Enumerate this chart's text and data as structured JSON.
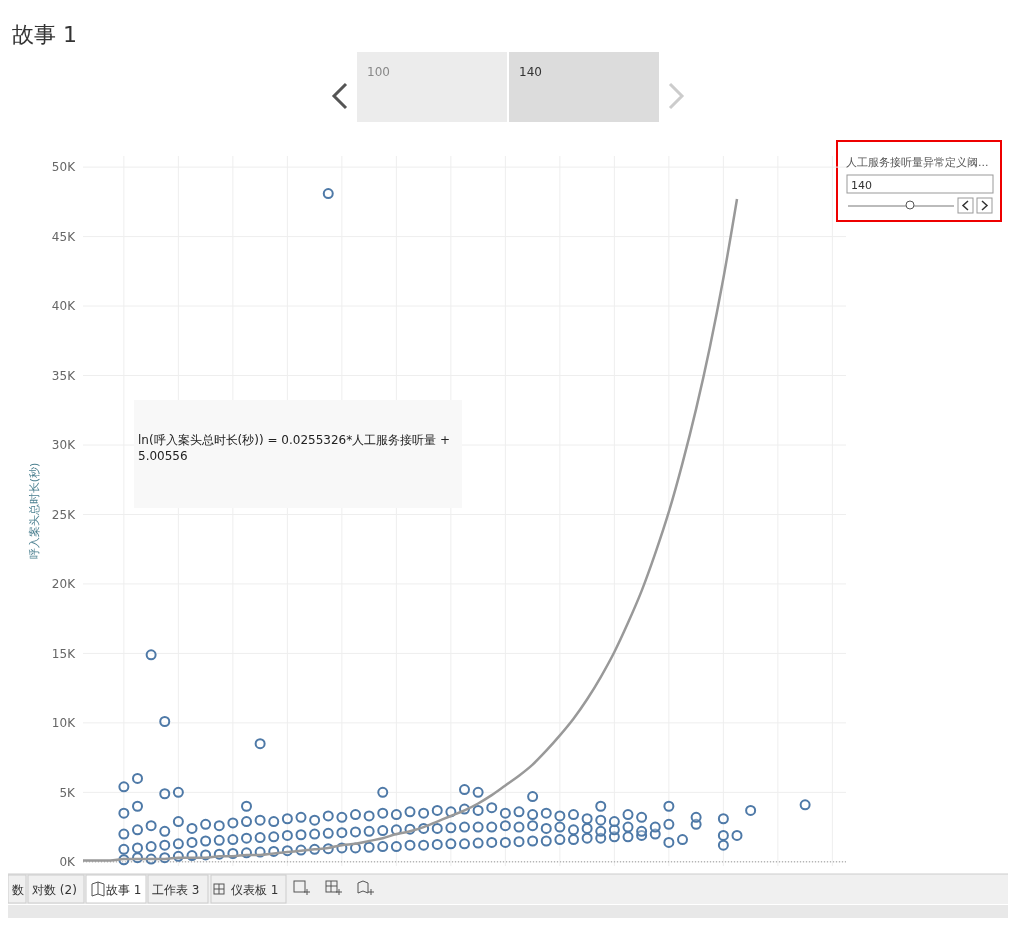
{
  "chart_data": {
    "type": "scatter",
    "title": "故事 1",
    "ylabel": "呼入案头总时长(秒)",
    "categories": [
      null,
      null,
      null,
      null,
      null,
      null,
      null,
      null,
      null,
      null,
      null,
      null,
      null,
      null,
      null,
      null,
      null,
      null,
      null,
      null,
      null,
      null,
      null,
      null,
      null,
      null,
      null,
      null,
      null,
      null,
      null,
      null,
      null,
      null,
      null,
      null,
      null,
      null,
      null,
      null,
      null,
      null,
      null,
      null,
      null,
      null,
      null,
      null,
      null,
      null,
      null,
      null,
      null,
      null,
      null,
      null,
      null
    ],
    "ylim": [
      -300,
      50800
    ],
    "yticks": [
      {
        "value": 0,
        "label": "0K"
      },
      {
        "value": 5000,
        "label": "5K"
      },
      {
        "value": 10000,
        "label": "10K"
      },
      {
        "value": 15000,
        "label": "15K"
      },
      {
        "value": 20000,
        "label": "20K"
      },
      {
        "value": 25000,
        "label": "25K"
      },
      {
        "value": 30000,
        "label": "30K"
      },
      {
        "value": 35000,
        "label": "35K"
      },
      {
        "value": 40000,
        "label": "40K"
      },
      {
        "value": 45000,
        "label": "45K"
      },
      {
        "value": 50000,
        "label": "50K"
      }
    ],
    "tick_labels": "y",
    "grid": true,
    "marker": "circle",
    "series": [
      {
        "color": "#4e79a7",
        "values": [
          null,
          null,
          null,
          150,
          300,
          200,
          300,
          400,
          450,
          500,
          550,
          600,
          650,
          700,
          750,
          800,
          850,
          900,
          950,
          1000,
          1000,
          1050,
          1100,
          1100,
          1200,
          1200,
          1250,
          1300,
          1300,
          1350,
          1400,
          1400,
          1450,
          1500,
          1500,
          1600,
          1600,
          1700,
          1700,
          1800,
          1800,
          1900,
          null,
          1400,
          1600,
          null,
          null,
          1200,
          1900,
          null,
          null,
          null,
          null,
          null,
          null,
          null,
          null
        ]
      },
      {
        "color": "#4e79a7",
        "values": [
          null,
          null,
          null,
          900,
          1000,
          1100,
          1200,
          1300,
          1400,
          1500,
          1550,
          1600,
          1700,
          1750,
          1800,
          1900,
          1950,
          2000,
          2050,
          2100,
          2150,
          2200,
          2250,
          2300,
          2350,
          2400,
          2400,
          2450,
          2500,
          2500,
          2500,
          2600,
          2500,
          2600,
          2400,
          2500,
          2300,
          2400,
          2200,
          2300,
          2500,
          2200,
          2000,
          2700,
          null,
          2700,
          null,
          1900,
          null,
          null,
          null,
          null,
          null,
          null,
          null,
          null,
          null
        ]
      },
      {
        "color": "#4e79a7",
        "values": [
          null,
          null,
          null,
          2000,
          2300,
          2600,
          2200,
          2900,
          2400,
          2700,
          2600,
          2800,
          2900,
          3000,
          2900,
          3100,
          3200,
          3000,
          3300,
          3200,
          3400,
          3300,
          3500,
          3400,
          3600,
          3500,
          3700,
          3600,
          3800,
          3700,
          3900,
          3500,
          3600,
          3400,
          3500,
          3300,
          3400,
          3100,
          3000,
          2900,
          3400,
          3200,
          2500,
          4000,
          null,
          3200,
          null,
          3100,
          null,
          3700,
          null,
          null,
          null,
          4100,
          null,
          null,
          null
        ]
      },
      {
        "color": "#4e79a7",
        "values": [
          null,
          null,
          null,
          5400,
          6000,
          14900,
          10100,
          5000,
          null,
          null,
          null,
          null,
          4000,
          8500,
          null,
          null,
          null,
          null,
          48100,
          null,
          null,
          null,
          5000,
          null,
          null,
          null,
          null,
          null,
          5200,
          5000,
          null,
          null,
          null,
          4700,
          null,
          null,
          null,
          null,
          4000,
          null,
          null,
          null,
          null,
          null,
          null,
          null,
          null,
          null,
          null,
          null,
          null,
          null,
          null,
          null,
          null,
          null,
          null
        ]
      },
      {
        "color": "#4e79a7",
        "values": [
          null,
          null,
          null,
          3500,
          4000,
          null,
          4900,
          null,
          null,
          null,
          null,
          null,
          null,
          null,
          null,
          null,
          null,
          null,
          null,
          null,
          null,
          null,
          null,
          null,
          null,
          null,
          null,
          null,
          null,
          null,
          null,
          null,
          null,
          null,
          null,
          null,
          null,
          null,
          null,
          null,
          null,
          null,
          null,
          null,
          null,
          null,
          null,
          null,
          null,
          null,
          null,
          null,
          null,
          null,
          null,
          null,
          null
        ]
      },
      {
        "type": "line",
        "color": "#999999",
        "line_style": "solid",
        "marker": "none",
        "values": [
          100,
          100,
          100,
          200,
          200,
          200,
          200,
          300,
          300,
          300,
          400,
          400,
          500,
          500,
          600,
          700,
          800,
          900,
          1000,
          1200,
          1300,
          1500,
          1700,
          2000,
          2200,
          2500,
          2900,
          3300,
          3700,
          4200,
          4800,
          5500,
          6200,
          7000,
          8000,
          9100,
          10300,
          11700,
          13300,
          15100,
          17200,
          19500,
          22200,
          25200,
          28700,
          32600,
          37000,
          42000,
          47700,
          null,
          null,
          null,
          null,
          null,
          null,
          null,
          null
        ]
      }
    ],
    "ref_lines": [
      {
        "axis": "y",
        "value": 0,
        "color": "#999999",
        "line_style": "dotted"
      }
    ],
    "annotations": [
      "ln(呼入案头总时长(秒)) = 0.0255326*人工服务接听量 + 5.00556",
      "100",
      "140",
      "人工服务接听量异常定义阈...",
      "140",
      "数",
      "对数 (2)",
      "故事 1",
      "工作表 3",
      "仪表板 1"
    ]
  }
}
